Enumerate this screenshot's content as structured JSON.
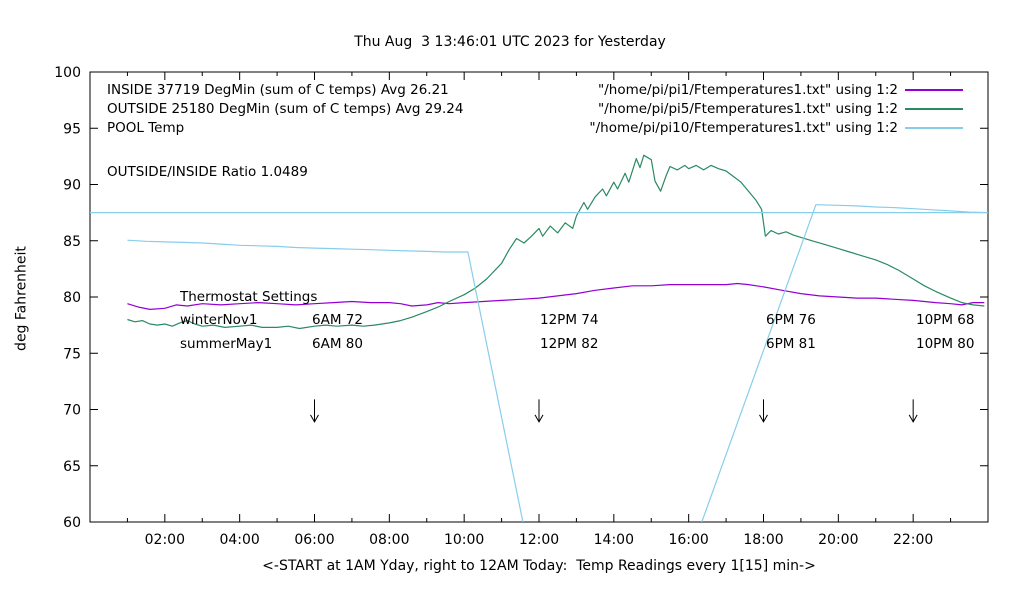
{
  "legend": {
    "rows": [
      {
        "label": "INSIDE 37719 DegMin (sum of C temps) Avg 26.21",
        "file": "\"/home/pi/pi1/Ftemperatures1.txt\" using 1:2"
      },
      {
        "label": "OUTSIDE 25180 DegMin (sum of C temps) Avg 29.24",
        "file": "\"/home/pi/pi5/Ftemperatures1.txt\" using 1:2"
      },
      {
        "label": "POOL Temp",
        "file": "\"/home/pi/pi10/Ftemperatures1.txt\" using 1:2"
      }
    ]
  },
  "ratio_text": "OUTSIDE/INSIDE Ratio 1.0489",
  "thermostat": {
    "title": "Thermostat Settings",
    "rows": [
      {
        "label": "winterNov1",
        "cells": [
          "6AM 72",
          "12PM 74",
          "6PM 76",
          "10PM 68"
        ]
      },
      {
        "label": "summerMay1",
        "cells": [
          "6AM 80",
          "12PM 82",
          "6PM 81",
          "10PM 80"
        ]
      }
    ]
  },
  "chart_data": {
    "type": "line",
    "title": "Thu Aug  3 13:46:01 UTC 2023 for Yesterday",
    "xlabel": "<-START at 1AM Yday, right to 12AM Today:  Temp Readings every 1[15] min->",
    "ylabel": "deg Fahrenheit",
    "xlim": [
      0,
      24
    ],
    "ylim": [
      60,
      100
    ],
    "yticks": [
      60,
      65,
      70,
      75,
      80,
      85,
      90,
      95,
      100
    ],
    "xticks": [
      {
        "t": 2,
        "label": "02:00"
      },
      {
        "t": 4,
        "label": "04:00"
      },
      {
        "t": 6,
        "label": "06:00"
      },
      {
        "t": 8,
        "label": "08:00"
      },
      {
        "t": 10,
        "label": "10:00"
      },
      {
        "t": 12,
        "label": "12:00"
      },
      {
        "t": 14,
        "label": "14:00"
      },
      {
        "t": 16,
        "label": "16:00"
      },
      {
        "t": 18,
        "label": "18:00"
      },
      {
        "t": 20,
        "label": "20:00"
      },
      {
        "t": 22,
        "label": "22:00"
      }
    ],
    "grid": false,
    "legend_position": "top-left-inside",
    "arrows_at_hours": [
      6,
      12,
      18,
      22
    ],
    "series": [
      {
        "name": "INSIDE",
        "color": "#9400d3",
        "points": [
          [
            1,
            79.4
          ],
          [
            1.3,
            79.1
          ],
          [
            1.6,
            78.9
          ],
          [
            2,
            79.0
          ],
          [
            2.3,
            79.3
          ],
          [
            2.6,
            79.2
          ],
          [
            3,
            79.4
          ],
          [
            3.5,
            79.3
          ],
          [
            4,
            79.4
          ],
          [
            4.5,
            79.5
          ],
          [
            5,
            79.4
          ],
          [
            5.5,
            79.3
          ],
          [
            6,
            79.4
          ],
          [
            6.5,
            79.5
          ],
          [
            7,
            79.6
          ],
          [
            7.5,
            79.5
          ],
          [
            8,
            79.5
          ],
          [
            8.3,
            79.4
          ],
          [
            8.6,
            79.2
          ],
          [
            9,
            79.3
          ],
          [
            9.3,
            79.5
          ],
          [
            9.6,
            79.4
          ],
          [
            10,
            79.5
          ],
          [
            10.5,
            79.6
          ],
          [
            11,
            79.7
          ],
          [
            11.5,
            79.8
          ],
          [
            12,
            79.9
          ],
          [
            12.5,
            80.1
          ],
          [
            13,
            80.3
          ],
          [
            13.5,
            80.6
          ],
          [
            14,
            80.8
          ],
          [
            14.5,
            81.0
          ],
          [
            15,
            81.0
          ],
          [
            15.5,
            81.1
          ],
          [
            16,
            81.1
          ],
          [
            16.5,
            81.1
          ],
          [
            17,
            81.1
          ],
          [
            17.3,
            81.2
          ],
          [
            17.6,
            81.1
          ],
          [
            18,
            80.9
          ],
          [
            18.5,
            80.6
          ],
          [
            19,
            80.3
          ],
          [
            19.5,
            80.1
          ],
          [
            20,
            80.0
          ],
          [
            20.5,
            79.9
          ],
          [
            21,
            79.9
          ],
          [
            21.5,
            79.8
          ],
          [
            22,
            79.7
          ],
          [
            22.3,
            79.6
          ],
          [
            22.6,
            79.5
          ],
          [
            23,
            79.4
          ],
          [
            23.3,
            79.3
          ],
          [
            23.6,
            79.5
          ],
          [
            23.9,
            79.5
          ]
        ]
      },
      {
        "name": "OUTSIDE",
        "color": "#2a8a62",
        "points": [
          [
            1,
            78.0
          ],
          [
            1.2,
            77.8
          ],
          [
            1.4,
            77.9
          ],
          [
            1.6,
            77.6
          ],
          [
            1.8,
            77.5
          ],
          [
            2,
            77.6
          ],
          [
            2.2,
            77.4
          ],
          [
            2.4,
            77.7
          ],
          [
            2.6,
            77.9
          ],
          [
            2.8,
            77.6
          ],
          [
            3,
            77.4
          ],
          [
            3.3,
            77.5
          ],
          [
            3.6,
            77.3
          ],
          [
            4,
            77.4
          ],
          [
            4.3,
            77.5
          ],
          [
            4.6,
            77.3
          ],
          [
            5,
            77.3
          ],
          [
            5.3,
            77.4
          ],
          [
            5.6,
            77.2
          ],
          [
            6,
            77.4
          ],
          [
            6.3,
            77.5
          ],
          [
            6.6,
            77.4
          ],
          [
            7,
            77.5
          ],
          [
            7.3,
            77.4
          ],
          [
            7.6,
            77.5
          ],
          [
            8,
            77.7
          ],
          [
            8.3,
            77.9
          ],
          [
            8.6,
            78.2
          ],
          [
            9,
            78.7
          ],
          [
            9.3,
            79.1
          ],
          [
            9.6,
            79.6
          ],
          [
            10,
            80.2
          ],
          [
            10.3,
            80.8
          ],
          [
            10.6,
            81.6
          ],
          [
            11,
            83.0
          ],
          [
            11.2,
            84.2
          ],
          [
            11.4,
            85.2
          ],
          [
            11.6,
            84.8
          ],
          [
            11.8,
            85.4
          ],
          [
            12,
            86.1
          ],
          [
            12.1,
            85.4
          ],
          [
            12.3,
            86.3
          ],
          [
            12.5,
            85.7
          ],
          [
            12.7,
            86.6
          ],
          [
            12.9,
            86.1
          ],
          [
            13,
            87.2
          ],
          [
            13.2,
            88.4
          ],
          [
            13.3,
            87.8
          ],
          [
            13.5,
            88.9
          ],
          [
            13.7,
            89.6
          ],
          [
            13.8,
            89.0
          ],
          [
            14,
            90.2
          ],
          [
            14.1,
            89.6
          ],
          [
            14.3,
            91.0
          ],
          [
            14.4,
            90.2
          ],
          [
            14.6,
            92.3
          ],
          [
            14.7,
            91.5
          ],
          [
            14.8,
            92.6
          ],
          [
            15,
            92.2
          ],
          [
            15.1,
            90.3
          ],
          [
            15.25,
            89.4
          ],
          [
            15.4,
            90.8
          ],
          [
            15.5,
            91.6
          ],
          [
            15.7,
            91.3
          ],
          [
            15.9,
            91.7
          ],
          [
            16,
            91.4
          ],
          [
            16.2,
            91.7
          ],
          [
            16.4,
            91.3
          ],
          [
            16.6,
            91.7
          ],
          [
            16.8,
            91.4
          ],
          [
            17,
            91.2
          ],
          [
            17.2,
            90.7
          ],
          [
            17.4,
            90.2
          ],
          [
            17.6,
            89.4
          ],
          [
            17.8,
            88.6
          ],
          [
            17.95,
            87.8
          ],
          [
            18.05,
            85.4
          ],
          [
            18.2,
            85.9
          ],
          [
            18.4,
            85.6
          ],
          [
            18.6,
            85.8
          ],
          [
            18.8,
            85.5
          ],
          [
            19,
            85.3
          ],
          [
            19.3,
            85.0
          ],
          [
            19.6,
            84.7
          ],
          [
            20,
            84.3
          ],
          [
            20.3,
            84.0
          ],
          [
            20.6,
            83.7
          ],
          [
            21,
            83.3
          ],
          [
            21.3,
            82.9
          ],
          [
            21.6,
            82.4
          ],
          [
            22,
            81.6
          ],
          [
            22.3,
            81.0
          ],
          [
            22.6,
            80.5
          ],
          [
            23,
            79.9
          ],
          [
            23.3,
            79.5
          ],
          [
            23.6,
            79.3
          ],
          [
            23.9,
            79.2
          ]
        ]
      },
      {
        "name": "POOL",
        "color": "#87ceeb",
        "segments": [
          [
            [
              0,
              87.5
            ],
            [
              24,
              87.5
            ]
          ],
          [
            [
              1,
              85.05
            ],
            [
              1.5,
              84.95
            ],
            [
              2,
              84.9
            ],
            [
              2.5,
              84.85
            ],
            [
              3,
              84.8
            ],
            [
              3.5,
              84.7
            ],
            [
              4,
              84.6
            ],
            [
              4.5,
              84.55
            ],
            [
              5,
              84.5
            ],
            [
              5.5,
              84.4
            ],
            [
              6,
              84.35
            ],
            [
              6.5,
              84.3
            ],
            [
              7,
              84.25
            ],
            [
              7.5,
              84.2
            ],
            [
              8,
              84.15
            ],
            [
              8.5,
              84.1
            ],
            [
              9,
              84.05
            ],
            [
              9.5,
              84.0
            ],
            [
              10,
              84.0
            ],
            [
              10.1,
              84.0
            ],
            [
              11.57,
              60
            ]
          ],
          [
            [
              16.35,
              60
            ],
            [
              19.4,
              88.2
            ],
            [
              20,
              88.15
            ],
            [
              20.5,
              88.1
            ],
            [
              21,
              88.0
            ],
            [
              21.5,
              87.95
            ],
            [
              22,
              87.85
            ],
            [
              22.5,
              87.75
            ],
            [
              23,
              87.65
            ],
            [
              23.5,
              87.55
            ],
            [
              24,
              87.5
            ]
          ]
        ]
      }
    ]
  }
}
